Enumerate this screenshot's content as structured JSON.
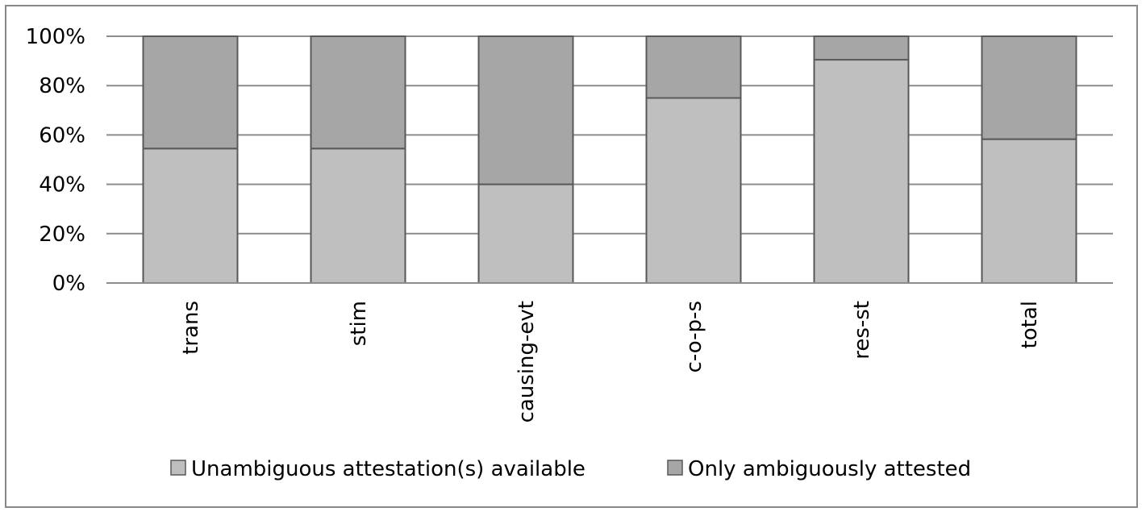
{
  "chart_data": {
    "type": "bar",
    "stacked": true,
    "percent": true,
    "title": "",
    "xlabel": "",
    "ylabel": "",
    "ylim": [
      0,
      100
    ],
    "yticks": [
      "0%",
      "20%",
      "40%",
      "60%",
      "80%",
      "100%"
    ],
    "categories": [
      "trans",
      "stim",
      "causing-evt",
      "c-o-p-s",
      "res-st",
      "total"
    ],
    "series": [
      {
        "name": "Unambiguous attestation(s) available",
        "color": "#bfbfbf",
        "values": [
          54.5,
          54.5,
          40,
          75,
          90.5,
          58.3
        ]
      },
      {
        "name": "Only ambiguously attested",
        "color": "#a6a6a6",
        "values": [
          45.5,
          45.5,
          60,
          25,
          9.5,
          41.7
        ]
      }
    ],
    "grid": true,
    "legend_position": "bottom"
  }
}
